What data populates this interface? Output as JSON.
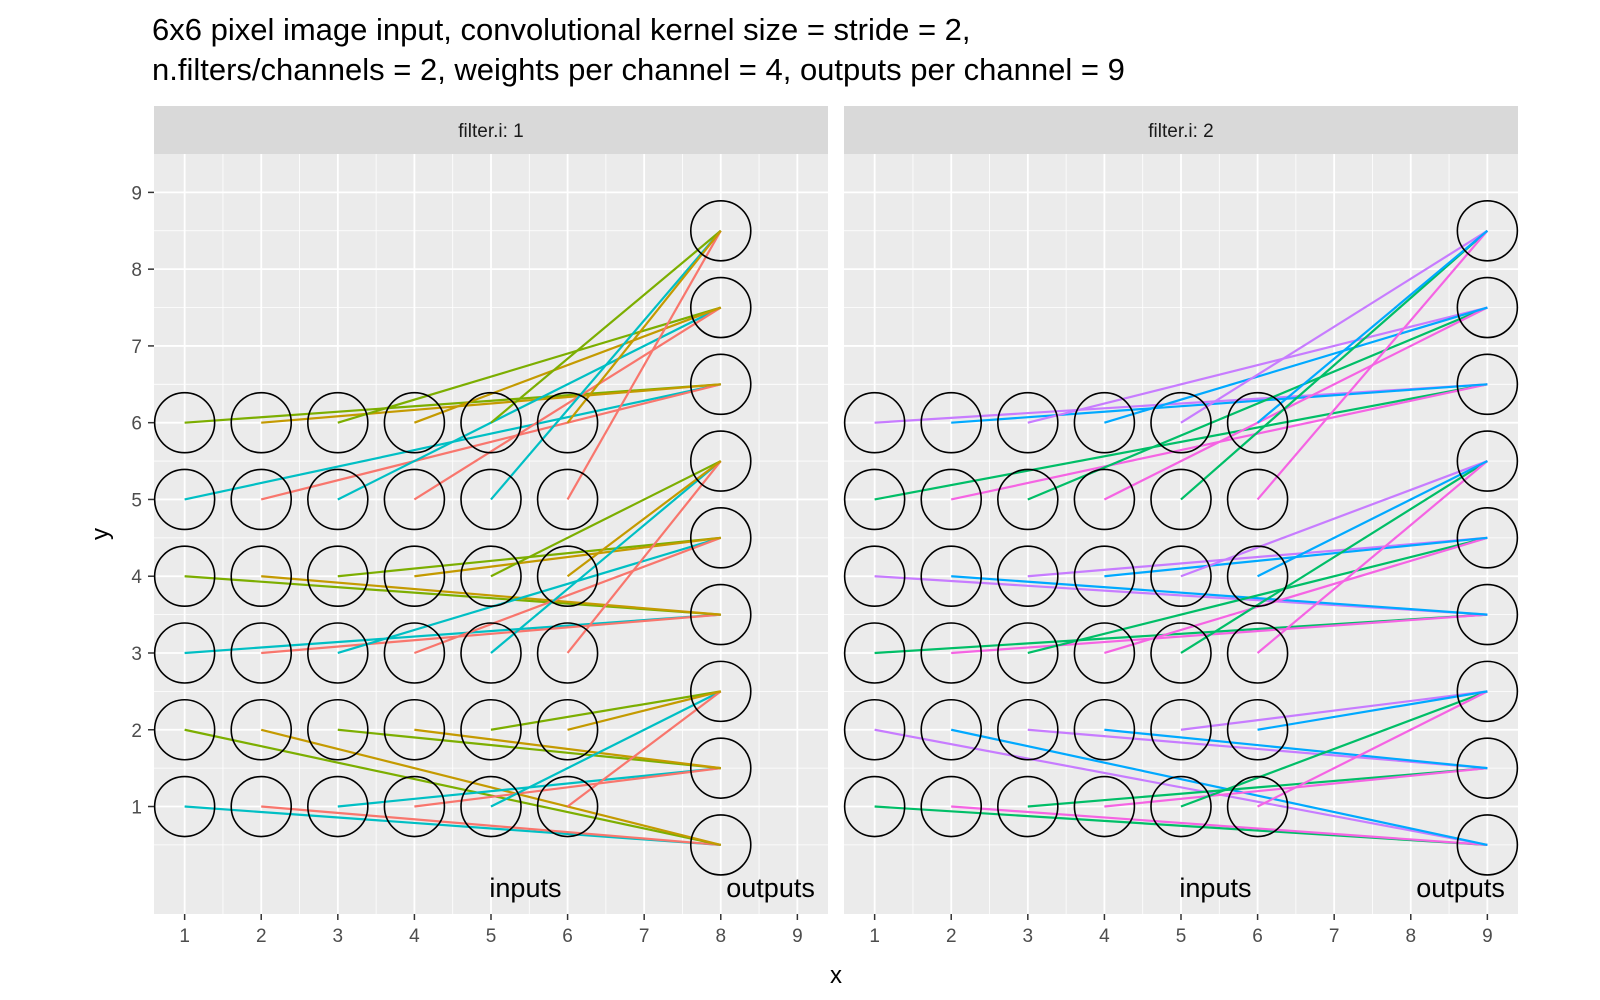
{
  "title_lines": [
    "6x6 pixel image input, convolutional kernel size = stride = 2,",
    "n.filters/channels = 2, weights per channel = 4, outputs per channel = 9"
  ],
  "chart_data": {
    "type": "scatter",
    "xlabel": "x",
    "ylabel": "y",
    "xlim": [
      0.6,
      9.4
    ],
    "ylim": [
      -0.4,
      9.5
    ],
    "x_ticks": [
      1,
      2,
      3,
      4,
      5,
      6,
      7,
      8,
      9
    ],
    "y_ticks": [
      1,
      2,
      3,
      4,
      5,
      6,
      7,
      8,
      9
    ],
    "grid": true,
    "facet_var": "filter.i",
    "facet_strip_prefix": "filter.i: ",
    "input_grid": {
      "size": 6,
      "x": [
        1,
        2,
        3,
        4,
        5,
        6
      ],
      "y": [
        1,
        2,
        3,
        4,
        5,
        6
      ]
    },
    "kernel_size": 2,
    "stride": 2,
    "output_y": [
      0.5,
      1.5,
      2.5,
      3.5,
      4.5,
      5.5,
      6.5,
      7.5,
      8.5
    ],
    "weight_colors_filter1": [
      "#00BFC4",
      "#F8766D",
      "#7CAE00",
      "#C49A00"
    ],
    "weight_colors_filter2": [
      "#00BE67",
      "#F564E3",
      "#C77CFF",
      "#00A9FF"
    ],
    "panels": [
      {
        "filter_i": "1",
        "output_x": 8,
        "input_label": "inputs",
        "output_label": "outputs",
        "input_label_x": 5.45,
        "output_label_x": 8.65,
        "label_y": -0.05
      },
      {
        "filter_i": "2",
        "output_x": 9,
        "input_label": "inputs",
        "output_label": "outputs",
        "input_label_x": 5.45,
        "output_label_x": 8.65,
        "label_y": -0.05
      }
    ]
  }
}
